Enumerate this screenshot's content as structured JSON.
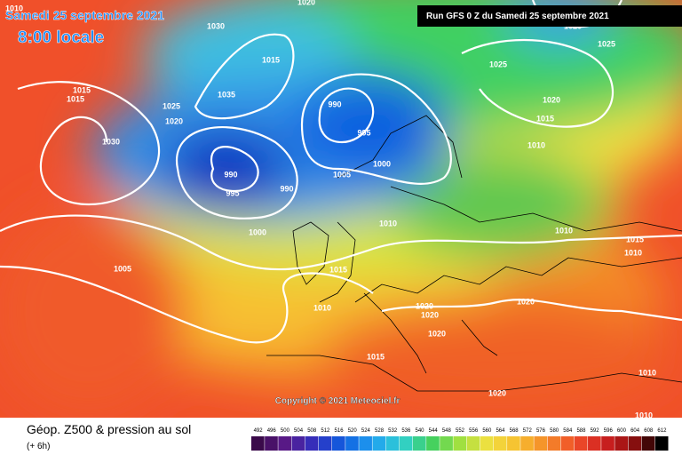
{
  "header": {
    "date": "Samedi 25 septembre 2021",
    "time": "8:00 locale",
    "run": "Run GFS 0 Z du Samedi 25 septembre 2021"
  },
  "isobars": [
    "1010",
    "1020",
    "1030",
    "1015",
    "1035",
    "1025",
    "1020",
    "1015",
    "1015",
    "1030",
    "990",
    "995",
    "990",
    "995",
    "990",
    "1005",
    "1000",
    "1000",
    "1010",
    "1005",
    "1015",
    "1010",
    "1020",
    "1020",
    "1020",
    "1020",
    "1015",
    "1020",
    "1010",
    "1010",
    "1015",
    "1010",
    "1010",
    "1010",
    "1015",
    "1020",
    "1025",
    "1025",
    "1020"
  ],
  "copyright": "Copyright © 2021 Meteociel.fr",
  "footer": {
    "title": "Géop. Z500 & pression au sol",
    "step": "(+ 6h)"
  },
  "scale": [
    492,
    496,
    500,
    504,
    508,
    512,
    516,
    520,
    524,
    528,
    532,
    536,
    540,
    544,
    548,
    552,
    556,
    560,
    564,
    568,
    572,
    576,
    580,
    584,
    588,
    592,
    596,
    600,
    604,
    608,
    612
  ]
}
